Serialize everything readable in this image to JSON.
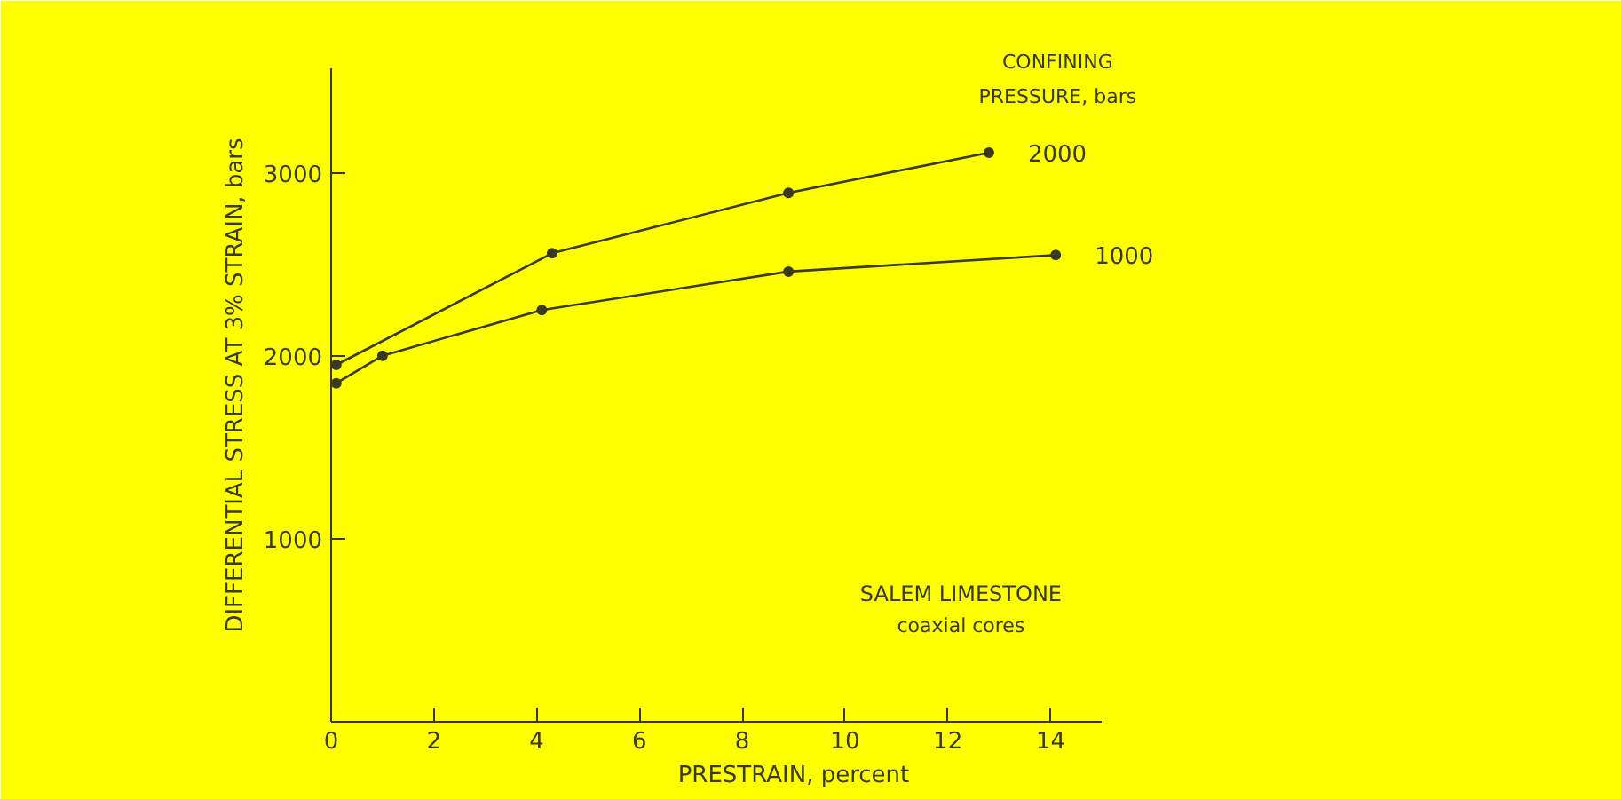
{
  "chart_data": {
    "type": "line",
    "xlabel": "PRESTRAIN, percent",
    "ylabel": "DIFFERENTIAL STRESS AT 3% STRAIN, bars",
    "legend_title": "CONFINING PRESSURE, bars",
    "series": [
      {
        "name": "2000",
        "color": "#3a3a20",
        "x": [
          0.1,
          4.3,
          8.9,
          12.8
        ],
        "values": [
          1950,
          2560,
          2890,
          3110
        ]
      },
      {
        "name": "1000",
        "color": "#3a3a20",
        "x": [
          0.1,
          1.0,
          4.1,
          8.9,
          14.1
        ],
        "values": [
          1850,
          2000,
          2250,
          2460,
          2550
        ]
      }
    ],
    "annotations": [
      "SALEM LIMESTONE",
      "coaxial cores"
    ],
    "xlim": [
      0,
      15
    ],
    "xticks": [
      0,
      2,
      4,
      6,
      8,
      10,
      12,
      14
    ],
    "ylim": [
      0,
      3570
    ],
    "yticks": [
      {
        "value": 0,
        "label": null
      },
      1000,
      2000,
      3000
    ],
    "grid": false,
    "marker": "circle",
    "line_style": "solid"
  }
}
